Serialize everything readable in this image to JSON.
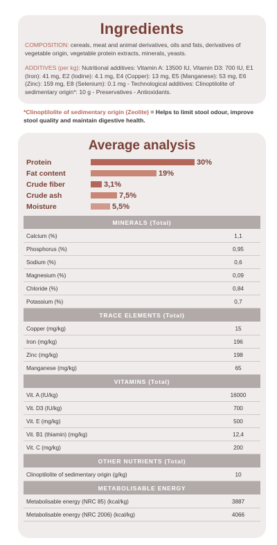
{
  "colors": {
    "accent": "#7a3f36",
    "bar": "#c88273",
    "header_bg": "#b2aaa9",
    "card_bg": "#efeceb"
  },
  "ingredients": {
    "title": "Ingredients",
    "composition_lead": "COMPOSITION:",
    "composition_text": " cereals, meat and animal derivatives, oils and fats, derivatives of vegetable origin, vegetable protein extracts, minerals, yeasts.",
    "additives_lead": "ADDITIVES (per kg):",
    "additives_text": " Nutritional additives: Vitamin A: 13500 IU, Vitamin D3: 700 IU, E1 (Iron): 41 mg, E2 (Iodine): 4.1 mg, E4 (Copper): 13 mg, E5 (Manganese): 53 mg, E6 (Zinc): 159 mg, E8 (Selenium): 0.1 mg - Technological additives: Clinoptilolite of sedimentary origin*: 10 g - Preservatives - Antioxidants."
  },
  "note": {
    "lead": "*Clinoptilolite of sedimentary origin (Zeolite)",
    "text": " = Helps to limit stool odour, improve stool quality and maintain digestive health."
  },
  "analysis": {
    "title": "Average analysis",
    "bars": [
      {
        "label": "Protein",
        "value": "30%",
        "fraction": 0.3,
        "color": "#b5665a"
      },
      {
        "label": "Fat content",
        "value": "19%",
        "fraction": 0.19,
        "color": "#c98676"
      },
      {
        "label": "Crude fiber",
        "value": "3,1%",
        "fraction": 0.031,
        "color": "#b5665a"
      },
      {
        "label": "Crude ash",
        "value": "7,5%",
        "fraction": 0.075,
        "color": "#c98676"
      },
      {
        "label": "Moisture",
        "value": "5,5%",
        "fraction": 0.055,
        "color": "#d29a8c"
      }
    ]
  },
  "sections": [
    {
      "title": "MINERALS (Total)",
      "rows": [
        {
          "label": "Calcium (%)",
          "value": "1,1"
        },
        {
          "label": "Phosphorus (%)",
          "value": "0,95"
        },
        {
          "label": "Sodium (%)",
          "value": "0,6"
        },
        {
          "label": "Magnesium (%)",
          "value": "0,09"
        },
        {
          "label": "Chloride (%)",
          "value": "0,84"
        },
        {
          "label": "Potassium (%)",
          "value": "0,7"
        }
      ]
    },
    {
      "title": "TRACE ELEMENTS (Total)",
      "rows": [
        {
          "label": "Copper (mg/kg)",
          "value": "15"
        },
        {
          "label": "Iron (mg/kg)",
          "value": "196"
        },
        {
          "label": "Zinc (mg/kg)",
          "value": "198"
        },
        {
          "label": "Manganese (mg/kg)",
          "value": "65"
        }
      ]
    },
    {
      "title": "VITAMINS (Total)",
      "rows": [
        {
          "label": "Vit. A (IU/kg)",
          "value": "16000"
        },
        {
          "label": "Vit. D3 (IU/kg)",
          "value": "700"
        },
        {
          "label": "Vit. E (mg/kg)",
          "value": "500"
        },
        {
          "label": "Vit. B1 (thiamin) (mg/kg)",
          "value": "12,4"
        },
        {
          "label": "Vit. C (mg/kg)",
          "value": "200"
        }
      ]
    },
    {
      "title": "OTHER NUTRIENTS (Total)",
      "rows": [
        {
          "label": "Clinoptilolite of sedimentary origin (g/kg)",
          "value": "10"
        }
      ]
    },
    {
      "title": "METABOLISABLE ENERGY",
      "rows": [
        {
          "label": "Metabolisable energy (NRC 85) (kcal/kg)",
          "value": "3887"
        },
        {
          "label": "Metabolisable energy (NRC 2006) (kcal/kg)",
          "value": "4066"
        }
      ]
    }
  ]
}
